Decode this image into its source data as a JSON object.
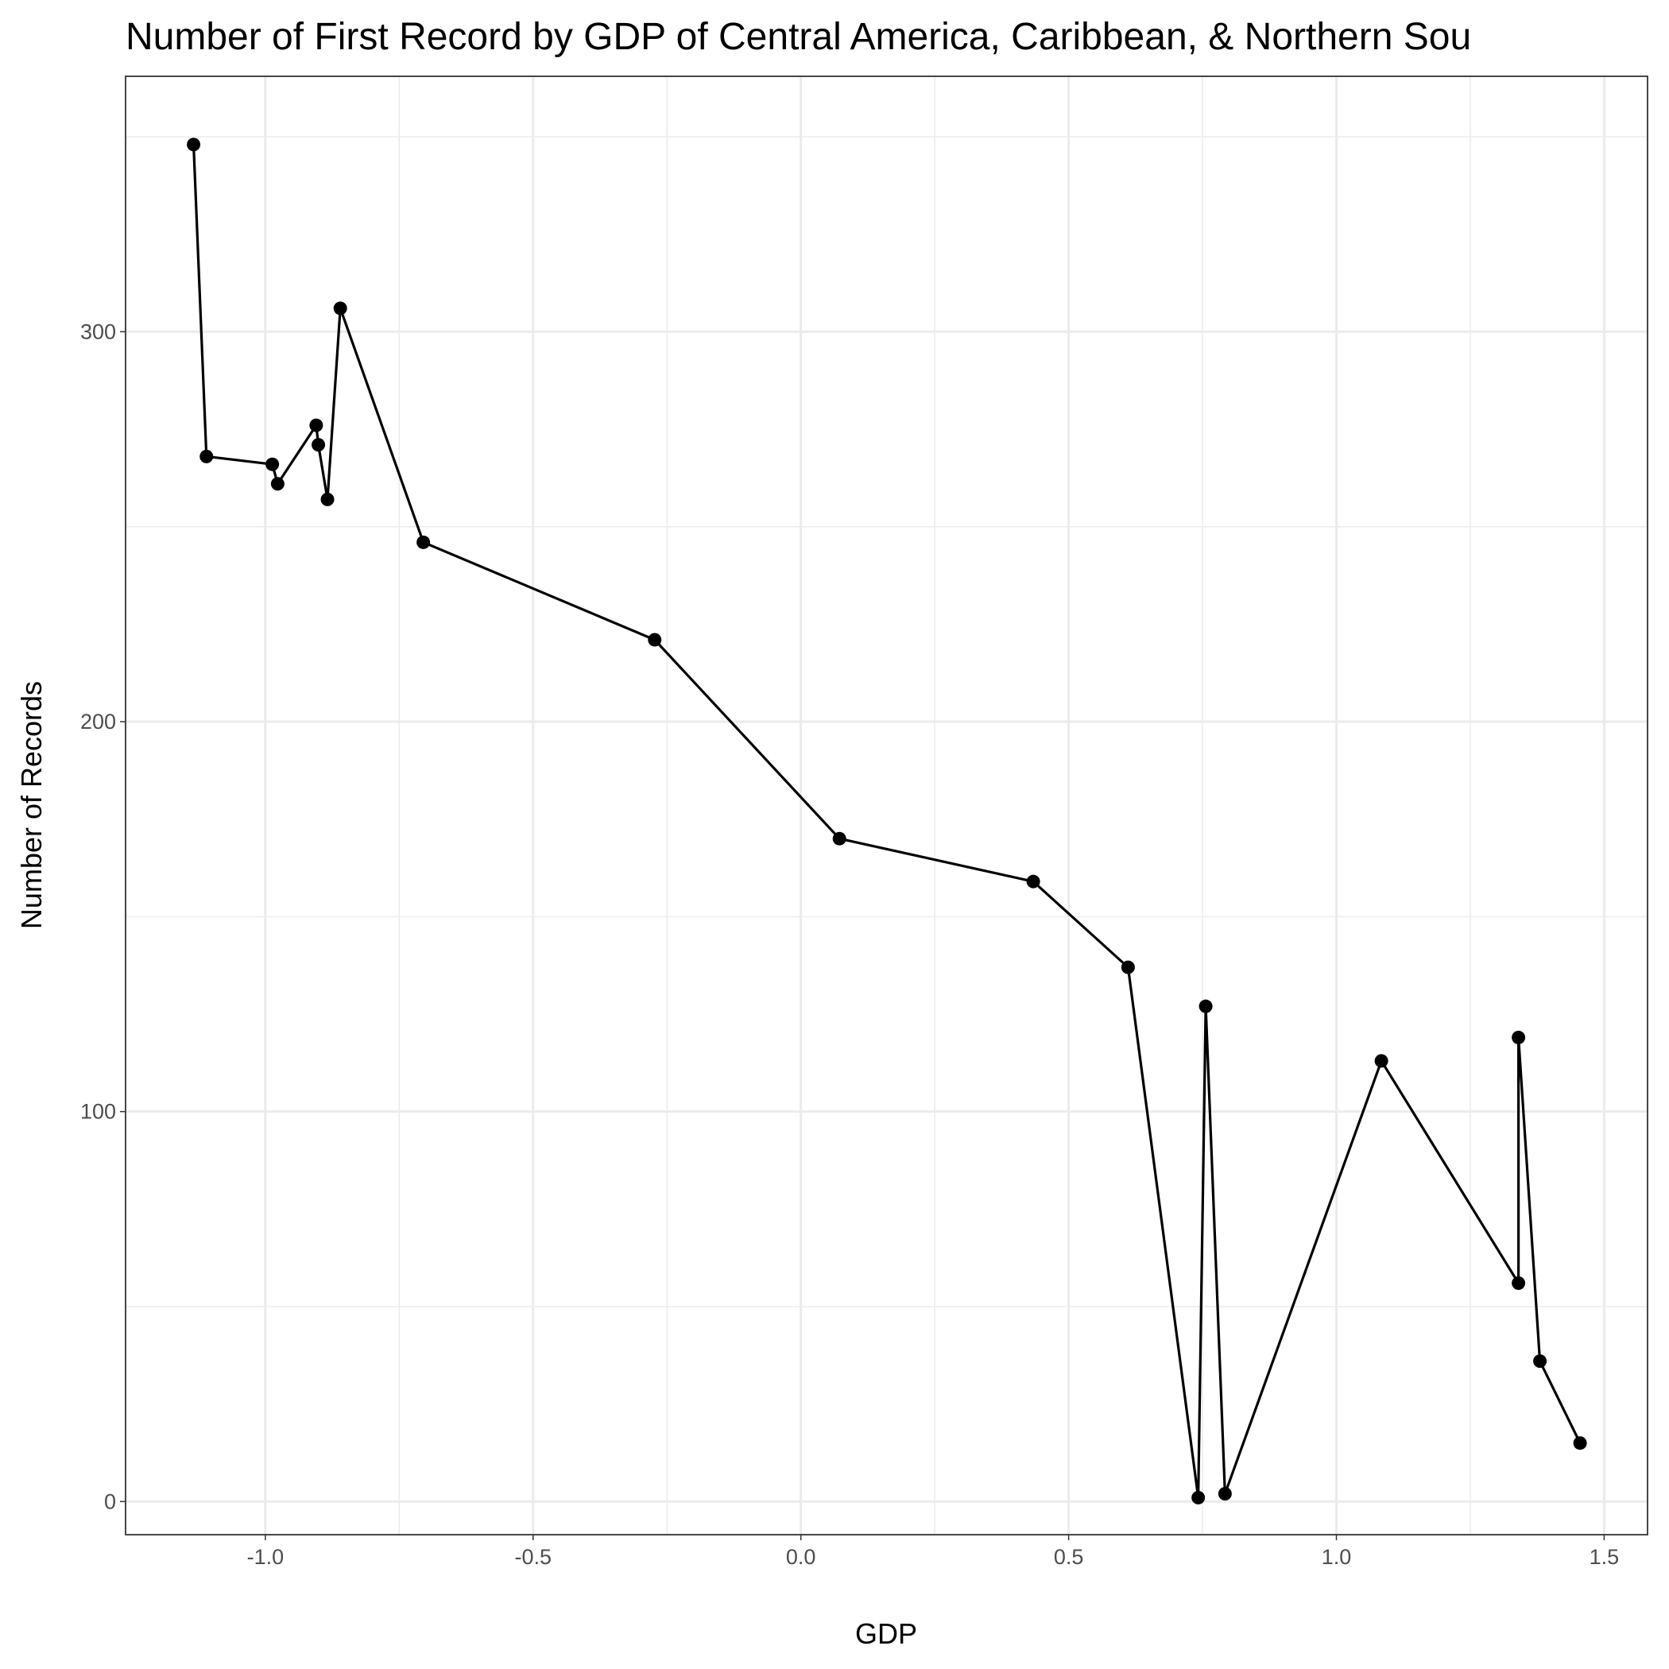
{
  "chart_data": {
    "type": "line",
    "title": "Number of First Record by GDP of Central America, Caribbean, & Northern Sou",
    "x_label": "GDP",
    "y_label": "Number of Records",
    "x": [
      -1.134,
      -1.11,
      -0.987,
      -0.977,
      -0.905,
      -0.901,
      -0.884,
      -0.86,
      -0.705,
      -0.273,
      0.072,
      0.434,
      0.611,
      0.742,
      0.756,
      0.792,
      1.084,
      1.34,
      1.34,
      1.38,
      1.455
    ],
    "series": [
      {
        "name": "Records",
        "color": "#000000",
        "values": [
          348,
          268,
          266,
          261,
          276,
          271,
          257,
          306,
          246,
          221,
          170,
          159,
          137,
          1,
          127,
          2,
          113,
          56,
          119,
          36,
          15
        ]
      }
    ],
    "xlim": [
      -1.261,
      1.581
    ],
    "ylim": [
      -8.5,
      365.5
    ],
    "xticks": [
      {
        "value": -1.0,
        "label": "-1.0"
      },
      -0.5,
      {
        "value": 0.0,
        "label": "0.0"
      },
      0.5,
      {
        "value": 1.0,
        "label": "1.0"
      },
      1.5
    ],
    "yticks": [
      0,
      100,
      200,
      300
    ],
    "x_minor_grid": [
      -0.75,
      -0.25,
      0.25,
      0.75,
      1.25
    ],
    "y_minor_grid": [
      50,
      150,
      250,
      350
    ],
    "grid": true
  }
}
